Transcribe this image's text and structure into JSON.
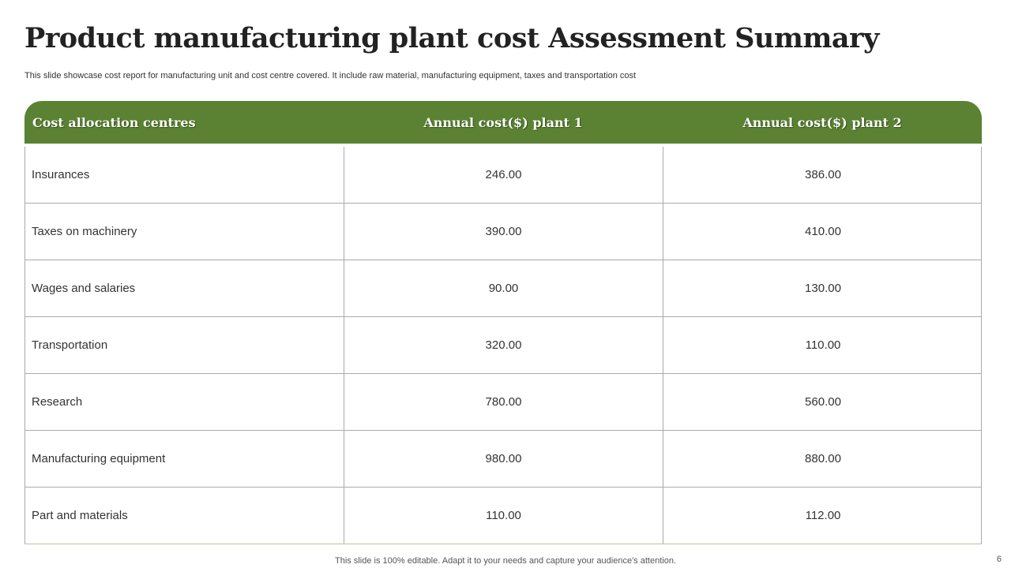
{
  "title": "Product manufacturing plant cost Assessment Summary",
  "subtitle": "This slide showcase cost report for manufacturing unit and cost centre covered.  It include raw material, manufacturing equipment, taxes and transportation cost",
  "table": {
    "headers": [
      "Cost allocation  centres",
      "Annual cost($) plant 1",
      "Annual cost($) plant 2"
    ],
    "rows": [
      [
        "Insurances",
        "246.00",
        "386.00"
      ],
      [
        "Taxes on machinery",
        "390.00",
        "410.00"
      ],
      [
        "Wages and salaries",
        "90.00",
        "130.00"
      ],
      [
        "Transportation",
        "320.00",
        "110.00"
      ],
      [
        "Research",
        "780.00",
        "560.00"
      ],
      [
        "Manufacturing  equipment",
        "980.00",
        "880.00"
      ],
      [
        "Part and materials",
        "110.00",
        "112.00"
      ]
    ]
  },
  "footer": "This slide is 100% editable. Adapt it to your needs and capture your audience's attention.",
  "page_number": "6",
  "colors": {
    "header_bg": "#5a8232"
  }
}
